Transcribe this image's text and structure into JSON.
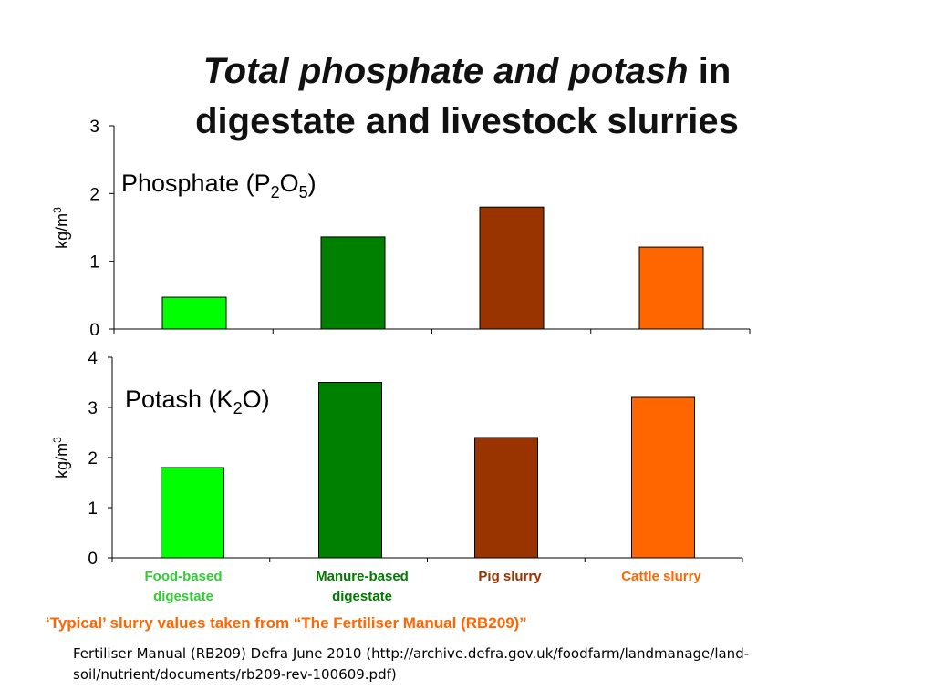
{
  "title": {
    "italic_part": "Total phosphate and potash",
    "line1_rest": " in",
    "line2": "digestate and livestock slurries"
  },
  "source_note": "‘Typical’ slurry values taken from “The Fertiliser Manual (RB209)”",
  "reference": "Fertiliser Manual (RB209)  Defra June 2010 (http://archive.defra.gov.uk/foodfarm/landmanage/land-soil/nutrient/documents/rb209-rev-100609.pdf)",
  "chart_data": [
    {
      "type": "bar",
      "title": "Phosphate (P2O5)",
      "ylabel": "kg/m3",
      "ylim": [
        0,
        3
      ],
      "yticks": [
        0,
        1,
        2,
        3
      ],
      "categories": [
        "Food-based digestate",
        "Manure-based digestate",
        "Pig slurry",
        "Cattle slurry"
      ],
      "values": [
        0.47,
        1.36,
        1.8,
        1.21
      ],
      "colors": [
        "#00ff00",
        "#008000",
        "#993300",
        "#ff6600"
      ],
      "grid": false
    },
    {
      "type": "bar",
      "title": "Potash (K2O)",
      "ylabel": "kg/m3",
      "ylim": [
        0,
        4
      ],
      "yticks": [
        0,
        1,
        2,
        3,
        4
      ],
      "categories": [
        "Food-based digestate",
        "Manure-based digestate",
        "Pig slurry",
        "Cattle slurry"
      ],
      "values": [
        1.8,
        3.5,
        2.4,
        3.2
      ],
      "colors": [
        "#00ff00",
        "#008000",
        "#993300",
        "#ff6600"
      ],
      "grid": false
    }
  ],
  "category_labels": [
    {
      "line1": "Food-based",
      "line2": "digestate",
      "color": "#33cc33"
    },
    {
      "line1": "Manure-based",
      "line2": "digestate",
      "color": "#007a00"
    },
    {
      "line1": "Pig slurry",
      "line2": "",
      "color": "#993300"
    },
    {
      "line1": "Cattle slurry",
      "line2": "",
      "color": "#ff6600"
    }
  ]
}
